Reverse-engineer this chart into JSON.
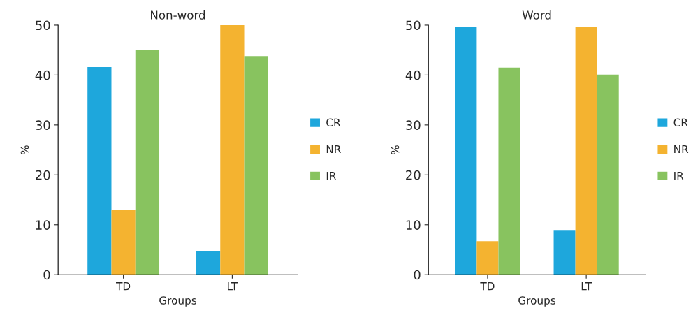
{
  "chart_data": [
    {
      "type": "bar",
      "title": "Non-word",
      "xlabel": "Groups",
      "ylabel": "%",
      "categories": [
        "TD",
        "LT"
      ],
      "ylim": [
        0,
        50
      ],
      "yticks": [
        0,
        10,
        20,
        30,
        40,
        50
      ],
      "grid": false,
      "legend": "right",
      "series": [
        {
          "name": "CR",
          "color": "#1ea7dc",
          "values": [
            41.6,
            4.8
          ]
        },
        {
          "name": "NR",
          "color": "#f4b330",
          "values": [
            12.9,
            50
          ]
        },
        {
          "name": "IR",
          "color": "#88c35f",
          "values": [
            45.1,
            43.8
          ]
        }
      ]
    },
    {
      "type": "bar",
      "title": "Word",
      "xlabel": "Groups",
      "ylabel": "%",
      "categories": [
        "TD",
        "LT"
      ],
      "ylim": [
        0,
        50
      ],
      "yticks": [
        0,
        10,
        20,
        30,
        40,
        50
      ],
      "grid": false,
      "legend": "right",
      "series": [
        {
          "name": "CR",
          "color": "#1ea7dc",
          "values": [
            49.7,
            8.8
          ]
        },
        {
          "name": "NR",
          "color": "#f4b330",
          "values": [
            6.7,
            49.7
          ]
        },
        {
          "name": "IR",
          "color": "#88c35f",
          "values": [
            41.5,
            40.1
          ]
        }
      ]
    }
  ]
}
